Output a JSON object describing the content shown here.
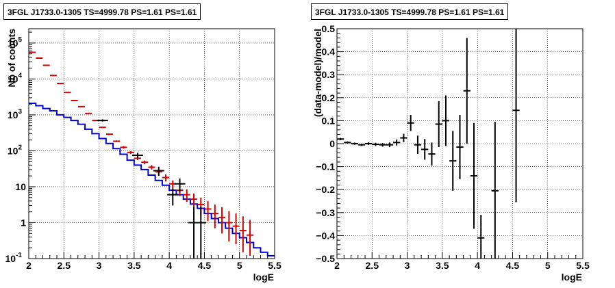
{
  "chart_data": [
    {
      "type": "line",
      "title": "3FGL J1733.0-1305 TS=4999.78 PS=1.61 PS=1.61",
      "xlabel": "logE",
      "ylabel": "Nb of counts",
      "xlim": [
        2,
        5.5
      ],
      "ylim": [
        0.1,
        250000
      ],
      "y_scale": "log",
      "grid": true,
      "x_ticks": [
        "2",
        "2.5",
        "3",
        "3.5",
        "4",
        "4.5",
        "5",
        "5.5"
      ],
      "y_ticks": [
        {
          "value": 0.1,
          "mantissa": "10",
          "exp": "-1"
        },
        {
          "value": 1,
          "mantissa": "1",
          "exp": ""
        },
        {
          "value": 10,
          "mantissa": "10",
          "exp": ""
        },
        {
          "value": 100,
          "mantissa": "10",
          "exp": "2"
        },
        {
          "value": 1000,
          "mantissa": "10",
          "exp": "3"
        },
        {
          "value": 10000,
          "mantissa": "10",
          "exp": "4"
        },
        {
          "value": 100000,
          "mantissa": "10",
          "exp": "5"
        }
      ],
      "bin_width": 0.1,
      "series": [
        {
          "color": "#d40000",
          "x": [
            2.05,
            2.15,
            2.25,
            2.35,
            2.45,
            2.55,
            2.65,
            2.75,
            2.85,
            2.95,
            3.05,
            3.15,
            3.25,
            3.35,
            3.45,
            3.55,
            3.65,
            3.75,
            3.85,
            3.95,
            4.05,
            4.15,
            4.25,
            4.35,
            4.45,
            4.55,
            4.65,
            4.75,
            4.85,
            4.95,
            5.05,
            5.15
          ],
          "values": [
            55000,
            38000,
            24000,
            12500,
            7500,
            4200,
            2500,
            1700,
            1100,
            700,
            450,
            290,
            185,
            125,
            90,
            62,
            48,
            35,
            26,
            18,
            12,
            8,
            6,
            4.5,
            3.2,
            2.4,
            1.8,
            1.4,
            1.0,
            0.8,
            0.6,
            0.45
          ],
          "err_low": [
            54000,
            37000,
            23500,
            12300,
            7350,
            4100,
            2440,
            1650,
            1060,
            675,
            430,
            275,
            175,
            115,
            82,
            55,
            42,
            30,
            22,
            14,
            9,
            5.5,
            3.8,
            2.7,
            1.7,
            1.1,
            0.7,
            0.5,
            0.3,
            0.25,
            0.15,
            0.12
          ],
          "err_high": [
            56000,
            39000,
            24500,
            12700,
            7650,
            4300,
            2560,
            1750,
            1140,
            725,
            470,
            305,
            195,
            135,
            98,
            69,
            54,
            40,
            30,
            22,
            15,
            11,
            8.5,
            6.5,
            5.0,
            4.0,
            3.2,
            2.7,
            2.1,
            1.8,
            1.5,
            1.2
          ]
        },
        {
          "color": "#0000d4",
          "x": [
            2.05,
            2.15,
            2.25,
            2.35,
            2.45,
            2.55,
            2.65,
            2.75,
            2.85,
            2.95,
            3.05,
            3.15,
            3.25,
            3.35,
            3.45,
            3.55,
            3.65,
            3.75,
            3.85,
            3.95,
            4.05,
            4.15,
            4.25,
            4.35,
            4.45,
            4.55,
            4.65,
            4.75,
            4.85,
            4.95,
            5.05,
            5.15,
            5.25,
            5.35,
            5.45
          ],
          "values": [
            2100,
            1800,
            1500,
            1300,
            1000,
            850,
            700,
            550,
            400,
            300,
            220,
            160,
            115,
            80,
            55,
            40,
            30,
            21,
            15,
            11,
            8,
            6,
            4.5,
            3.3,
            2.5,
            1.8,
            1.3,
            1.0,
            0.7,
            0.5,
            0.38,
            0.28,
            0.2,
            0.15,
            0.12
          ]
        },
        {
          "color": "#000000",
          "x": [
            3.05,
            3.55,
            3.85,
            4.05,
            4.15,
            4.35,
            4.45
          ],
          "values": [
            700,
            75,
            28,
            6,
            12,
            1,
            1
          ],
          "err_low": [
            650,
            62,
            20,
            3,
            7,
            0.1,
            0.1
          ],
          "err_high": [
            750,
            88,
            36,
            9,
            17,
            2.8,
            2.8
          ]
        }
      ]
    },
    {
      "type": "scatter",
      "title": "3FGL J1733.0-1305 TS=4999.78 PS=1.61 PS=1.61",
      "xlabel": "logE",
      "ylabel": "(data-model)/model",
      "xlim": [
        2,
        5.5
      ],
      "ylim": [
        -0.5,
        0.5
      ],
      "grid": true,
      "x_ticks": [
        "2",
        "2.5",
        "3",
        "3.5",
        "4",
        "4.5",
        "5",
        "5.5"
      ],
      "y_ticks": [
        "−0.5",
        "−0.4",
        "−0.3",
        "−0.2",
        "−0.1",
        "0",
        "0.1",
        "0.2",
        "0.3",
        "0.4",
        "0.5"
      ],
      "series": [
        {
          "color": "#000000",
          "x": [
            2.05,
            2.15,
            2.25,
            2.35,
            2.45,
            2.55,
            2.65,
            2.75,
            2.85,
            2.95,
            3.05,
            3.15,
            3.25,
            3.35,
            3.45,
            3.55,
            3.65,
            3.75,
            3.85,
            3.95,
            4.05,
            4.25,
            4.55
          ],
          "values": [
            0.02,
            0.005,
            0.0,
            -0.005,
            0.0,
            -0.003,
            -0.005,
            -0.005,
            0.005,
            0.025,
            0.09,
            -0.005,
            -0.025,
            -0.045,
            0.085,
            0.1,
            -0.075,
            -0.015,
            0.23,
            -0.14,
            -0.41,
            -0.205,
            0.145
          ],
          "err": [
            0.005,
            0.005,
            0.005,
            0.005,
            0.006,
            0.007,
            0.008,
            0.01,
            0.013,
            0.018,
            0.035,
            0.04,
            0.045,
            0.05,
            0.1,
            0.11,
            0.13,
            0.14,
            0.23,
            0.23,
            0.1,
            0.3,
            0.4
          ],
          "half_width": [
            0.05,
            0.05,
            0.05,
            0.05,
            0.05,
            0.05,
            0.05,
            0.05,
            0.05,
            0.05,
            0.05,
            0.05,
            0.05,
            0.05,
            0.05,
            0.05,
            0.05,
            0.05,
            0.05,
            0.05,
            0.05,
            0.05,
            0.05
          ]
        }
      ]
    }
  ]
}
